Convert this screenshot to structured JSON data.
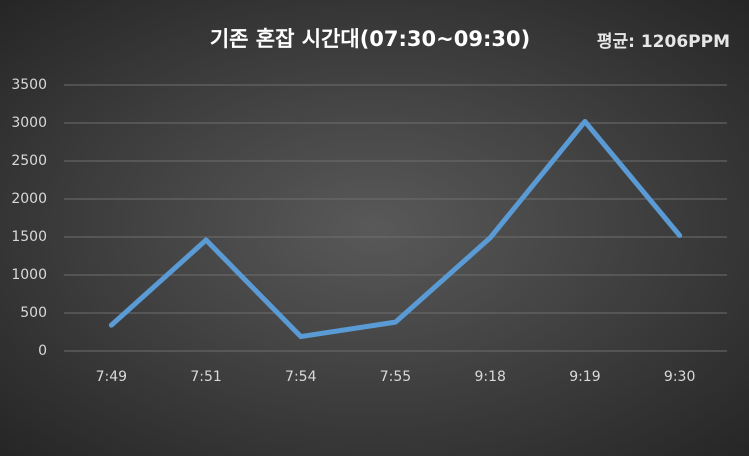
{
  "chart_data": {
    "type": "line",
    "title": "기존 혼잡 시간대(07:30~09:30)",
    "annotation": "평균: 1206PPM",
    "categories": [
      "7:49",
      "7:51",
      "7:54",
      "7:55",
      "9:18",
      "9:19",
      "9:30"
    ],
    "series": [
      {
        "color": "#5b9bd5",
        "values": [
          340,
          1460,
          190,
          380,
          1490,
          3020,
          1520
        ]
      }
    ],
    "ylim": [
      0,
      3500
    ],
    "yticks": [
      0,
      500,
      1000,
      1500,
      2000,
      2500,
      3000,
      3500
    ],
    "grid": true
  }
}
